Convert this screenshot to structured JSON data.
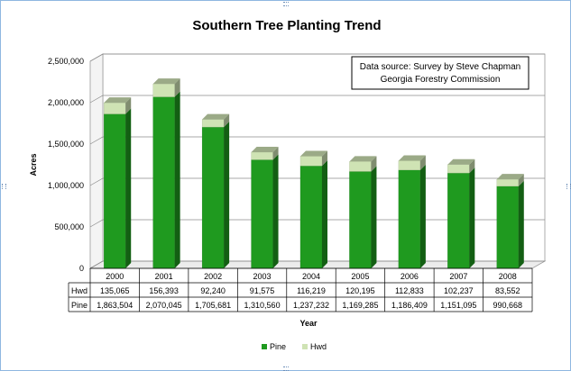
{
  "chart_data": {
    "type": "bar",
    "stacked": true,
    "three_d": true,
    "title": "Southern Tree Planting Trend",
    "xlabel": "Year",
    "ylabel": "Acres",
    "ylim": [
      0,
      2500000
    ],
    "yticks": [
      "0",
      "500,000",
      "1,000,000",
      "1,500,000",
      "2,000,000",
      "2,500,000"
    ],
    "ytick_values": [
      0,
      500000,
      1000000,
      1500000,
      2000000,
      2500000
    ],
    "grid": true,
    "legend_position": "bottom",
    "categories": [
      "2000",
      "2001",
      "2002",
      "2003",
      "2004",
      "2005",
      "2006",
      "2007",
      "2008"
    ],
    "series": [
      {
        "name": "Pine",
        "color": "#1f9a1f",
        "values": [
          1863504,
          2070045,
          1705681,
          1310560,
          1237232,
          1169285,
          1186409,
          1151095,
          990668
        ],
        "labels": [
          "1,863,504",
          "2,070,045",
          "1,705,681",
          "1,310,560",
          "1,237,232",
          "1,169,285",
          "1,186,409",
          "1,151,095",
          "990,668"
        ]
      },
      {
        "name": "Hwd",
        "color": "#cfe3b4",
        "values": [
          135065,
          156393,
          92240,
          91575,
          116219,
          120195,
          112833,
          102237,
          83552
        ],
        "labels": [
          "135,065",
          "156,393",
          "92,240",
          "91,575",
          "116,219",
          "120,195",
          "112,833",
          "102,237",
          "83,552"
        ]
      }
    ],
    "table_row_order": [
      "Hwd",
      "Pine"
    ],
    "annotation": [
      "Data source: Survey by Steve Chapman",
      "Georgia Forestry Commission"
    ]
  }
}
